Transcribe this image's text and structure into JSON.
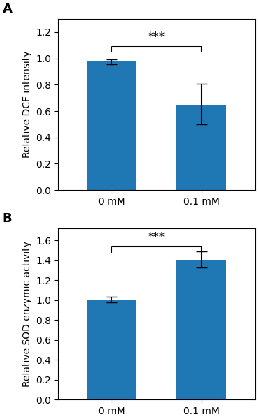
{
  "chart_data": [
    {
      "type": "bar",
      "panel_label": "A",
      "categories": [
        "0 mM",
        "0.1 mM"
      ],
      "values": [
        0.975,
        0.645
      ],
      "error_upper": [
        0.02,
        0.16
      ],
      "error_lower": [
        0.02,
        0.145
      ],
      "ylabel": "Relative DCF intensity",
      "ylim": [
        0.0,
        1.3
      ],
      "yticks": [
        0.0,
        0.2,
        0.4,
        0.6,
        0.8,
        1.0,
        1.2
      ],
      "significance": {
        "text": "***",
        "from": "0 mM",
        "to": "0.1 mM",
        "bar_y": 1.09,
        "text_y": 1.115,
        "tick_drop": 0.04
      }
    },
    {
      "type": "bar",
      "panel_label": "B",
      "categories": [
        "0 mM",
        "0.1 mM"
      ],
      "values": [
        1.005,
        1.4
      ],
      "error_upper": [
        0.025,
        0.09
      ],
      "error_lower": [
        0.025,
        0.07
      ],
      "ylabel": "Relative SOD enzymic activity",
      "ylim": [
        0.0,
        1.72
      ],
      "yticks": [
        0.0,
        0.2,
        0.4,
        0.6,
        0.8,
        1.0,
        1.2,
        1.4,
        1.6
      ],
      "significance": {
        "text": "***",
        "from": "0 mM",
        "to": "0.1 mM",
        "bar_y": 1.535,
        "text_y": 1.565,
        "tick_drop": 0.055
      }
    }
  ]
}
